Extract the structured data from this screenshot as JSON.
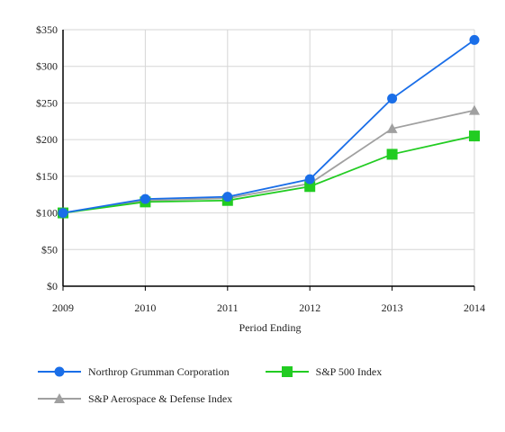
{
  "chart_data": {
    "type": "line",
    "title": "",
    "xlabel": "Period Ending",
    "ylabel": "",
    "categories": [
      "2009",
      "2010",
      "2011",
      "2012",
      "2013",
      "2014"
    ],
    "ylim": [
      0,
      350
    ],
    "yticks": [
      "$0",
      "$50",
      "$100",
      "$150",
      "$200",
      "$250",
      "$300",
      "$350"
    ],
    "ytick_values": [
      0,
      50,
      100,
      150,
      200,
      250,
      300,
      350
    ],
    "grid": true,
    "legend_position": "bottom",
    "series": [
      {
        "name": "Northrop Grumman Corporation",
        "color": "#1a6ee8",
        "marker": "circle",
        "values": [
          100,
          119,
          122,
          146,
          256,
          336
        ]
      },
      {
        "name": "S&P 500 Index",
        "color": "#22cc22",
        "marker": "square",
        "values": [
          100,
          115,
          117,
          136,
          180,
          205
        ]
      },
      {
        "name": "S&P Aerospace & Defense Index",
        "color": "#a0a0a0",
        "marker": "triangle",
        "values": [
          100,
          117,
          120,
          140,
          215,
          240
        ]
      }
    ]
  }
}
